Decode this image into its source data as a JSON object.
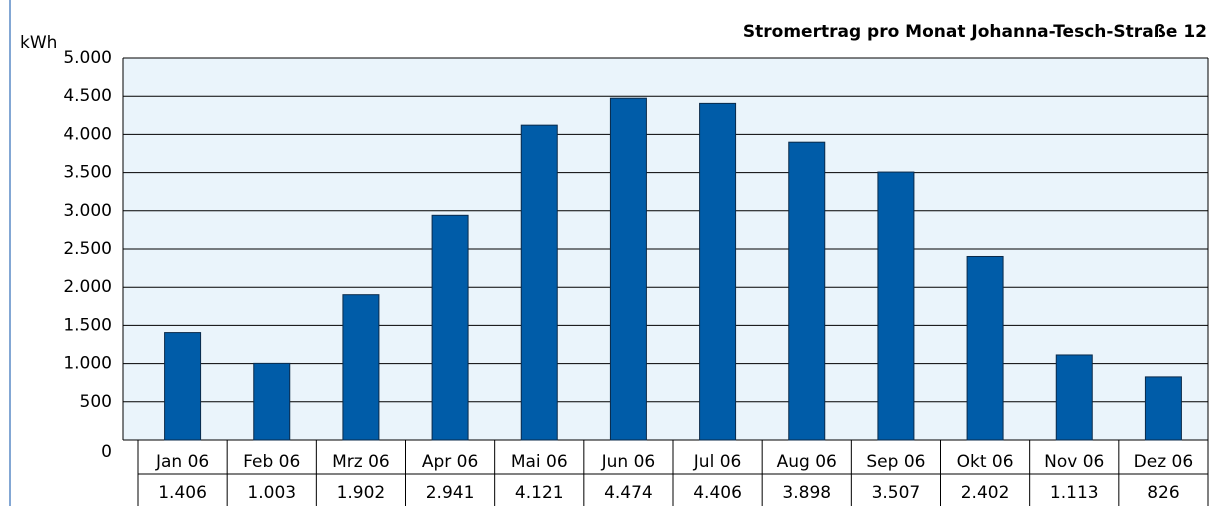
{
  "chart_data": {
    "type": "bar",
    "title": "Stromertrag pro Monat Johanna-Tesch-Straße 12",
    "y_label": "kWh",
    "categories": [
      "Jan 06",
      "Feb 06",
      "Mrz 06",
      "Apr 06",
      "Mai 06",
      "Jun 06",
      "Jul 06",
      "Aug 06",
      "Sep 06",
      "Okt 06",
      "Nov 06",
      "Dez 06"
    ],
    "values": [
      1406,
      1003,
      1902,
      2941,
      4121,
      4474,
      4406,
      3898,
      3507,
      2402,
      1113,
      826
    ],
    "value_labels": [
      "1.406",
      "1.003",
      "1.902",
      "2.941",
      "4.121",
      "4.474",
      "4.406",
      "3.898",
      "3.507",
      "2.402",
      "1.113",
      "826"
    ],
    "color": "#005ca8",
    "ylim": [
      0,
      5000
    ],
    "yticks": [
      0,
      500,
      {
        "value": 1000,
        "label": "1.000"
      },
      {
        "value": 1500,
        "label": "1.500"
      },
      {
        "value": 2000,
        "label": "2.000"
      },
      {
        "value": 2500,
        "label": "2.500"
      },
      {
        "value": 3000,
        "label": "3.000"
      },
      {
        "value": 3500,
        "label": "3.500"
      },
      {
        "value": 4000,
        "label": "4.000"
      },
      {
        "value": 4500,
        "label": "4.500"
      },
      {
        "value": 5000,
        "label": "5.000"
      }
    ],
    "grid": true
  }
}
